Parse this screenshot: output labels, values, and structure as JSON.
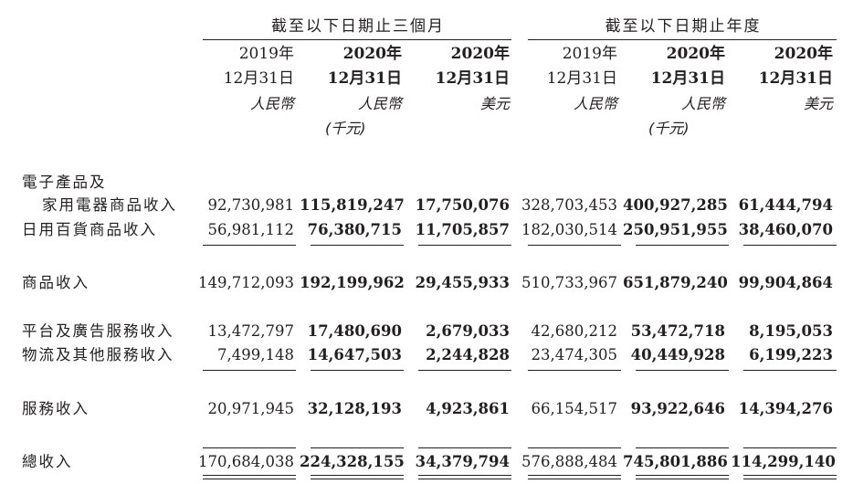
{
  "groups": {
    "quarter": "截至以下日期止三個月",
    "year": "截至以下日期止年度"
  },
  "columns": [
    {
      "year": "2019年",
      "date": "12月31日",
      "currency": "人民幣",
      "unit": "",
      "bold": false
    },
    {
      "year": "2020年",
      "date": "12月31日",
      "currency": "人民幣",
      "unit": "(千元)",
      "bold": true
    },
    {
      "year": "2020年",
      "date": "12月31日",
      "currency": "美元",
      "unit": "",
      "bold": true
    },
    {
      "year": "2019年",
      "date": "12月31日",
      "currency": "人民幣",
      "unit": "",
      "bold": false
    },
    {
      "year": "2020年",
      "date": "12月31日",
      "currency": "人民幣",
      "unit": "(千元)",
      "bold": true
    },
    {
      "year": "2020年",
      "date": "12月31日",
      "currency": "美元",
      "unit": "",
      "bold": true
    }
  ],
  "rows": [
    {
      "label_line1": "電子產品及",
      "label": "家用電器商品收入",
      "values": [
        "92,730,981",
        "115,819,247",
        "17,750,076",
        "328,703,453",
        "400,927,285",
        "61,444,794"
      ]
    },
    {
      "label": "日用百貨商品收入",
      "values": [
        "56,981,112",
        "76,380,715",
        "11,705,857",
        "182,030,514",
        "250,951,955",
        "38,460,070"
      ]
    },
    {
      "label": "商品收入",
      "values": [
        "149,712,093",
        "192,199,962",
        "29,455,933",
        "510,733,967",
        "651,879,240",
        "99,904,864"
      ]
    },
    {
      "label": "平台及廣告服務收入",
      "values": [
        "13,472,797",
        "17,480,690",
        "2,679,033",
        "42,680,212",
        "53,472,718",
        "8,195,053"
      ]
    },
    {
      "label": "物流及其他服務收入",
      "values": [
        "7,499,148",
        "14,647,503",
        "2,244,828",
        "23,474,305",
        "40,449,928",
        "6,199,223"
      ]
    },
    {
      "label": "服務收入",
      "values": [
        "20,971,945",
        "32,128,193",
        "4,923,861",
        "66,154,517",
        "93,922,646",
        "14,394,276"
      ]
    },
    {
      "label": "總收入",
      "values": [
        "170,684,038",
        "224,328,155",
        "34,379,794",
        "576,888,484",
        "745,801,886",
        "114,299,140"
      ]
    }
  ]
}
